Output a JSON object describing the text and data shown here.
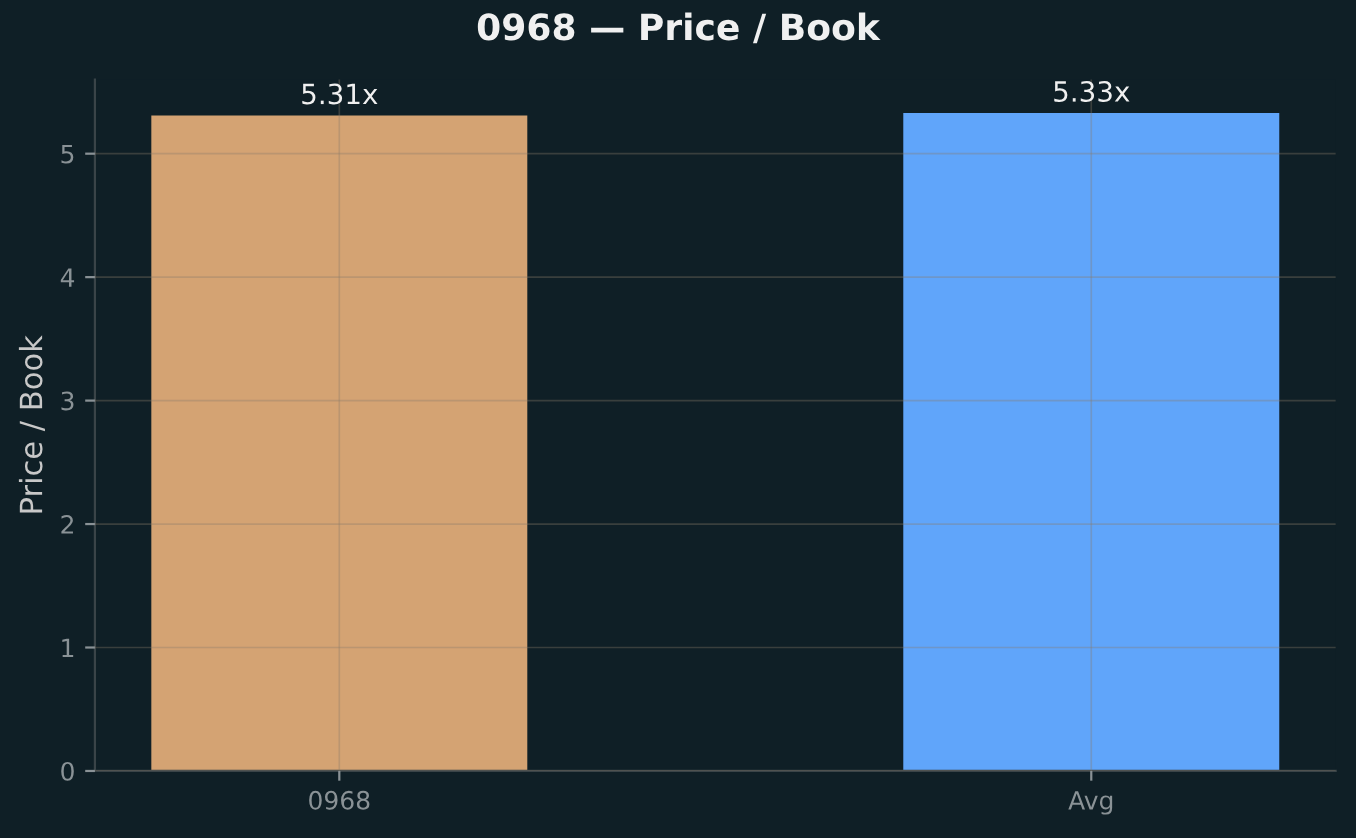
{
  "chart_data": {
    "type": "bar",
    "title": "0968 — Price / Book",
    "ylabel": "Price / Book",
    "categories": [
      "0968",
      "Avg"
    ],
    "values": [
      5.31,
      5.33
    ],
    "colors": [
      "#d4a373",
      "#60a5fa"
    ],
    "value_labels": [
      "5.31x",
      "5.33x"
    ],
    "ylim": [
      0,
      5.6
    ],
    "yticks": [
      0,
      1,
      2,
      3,
      4,
      5
    ],
    "grid": true
  }
}
